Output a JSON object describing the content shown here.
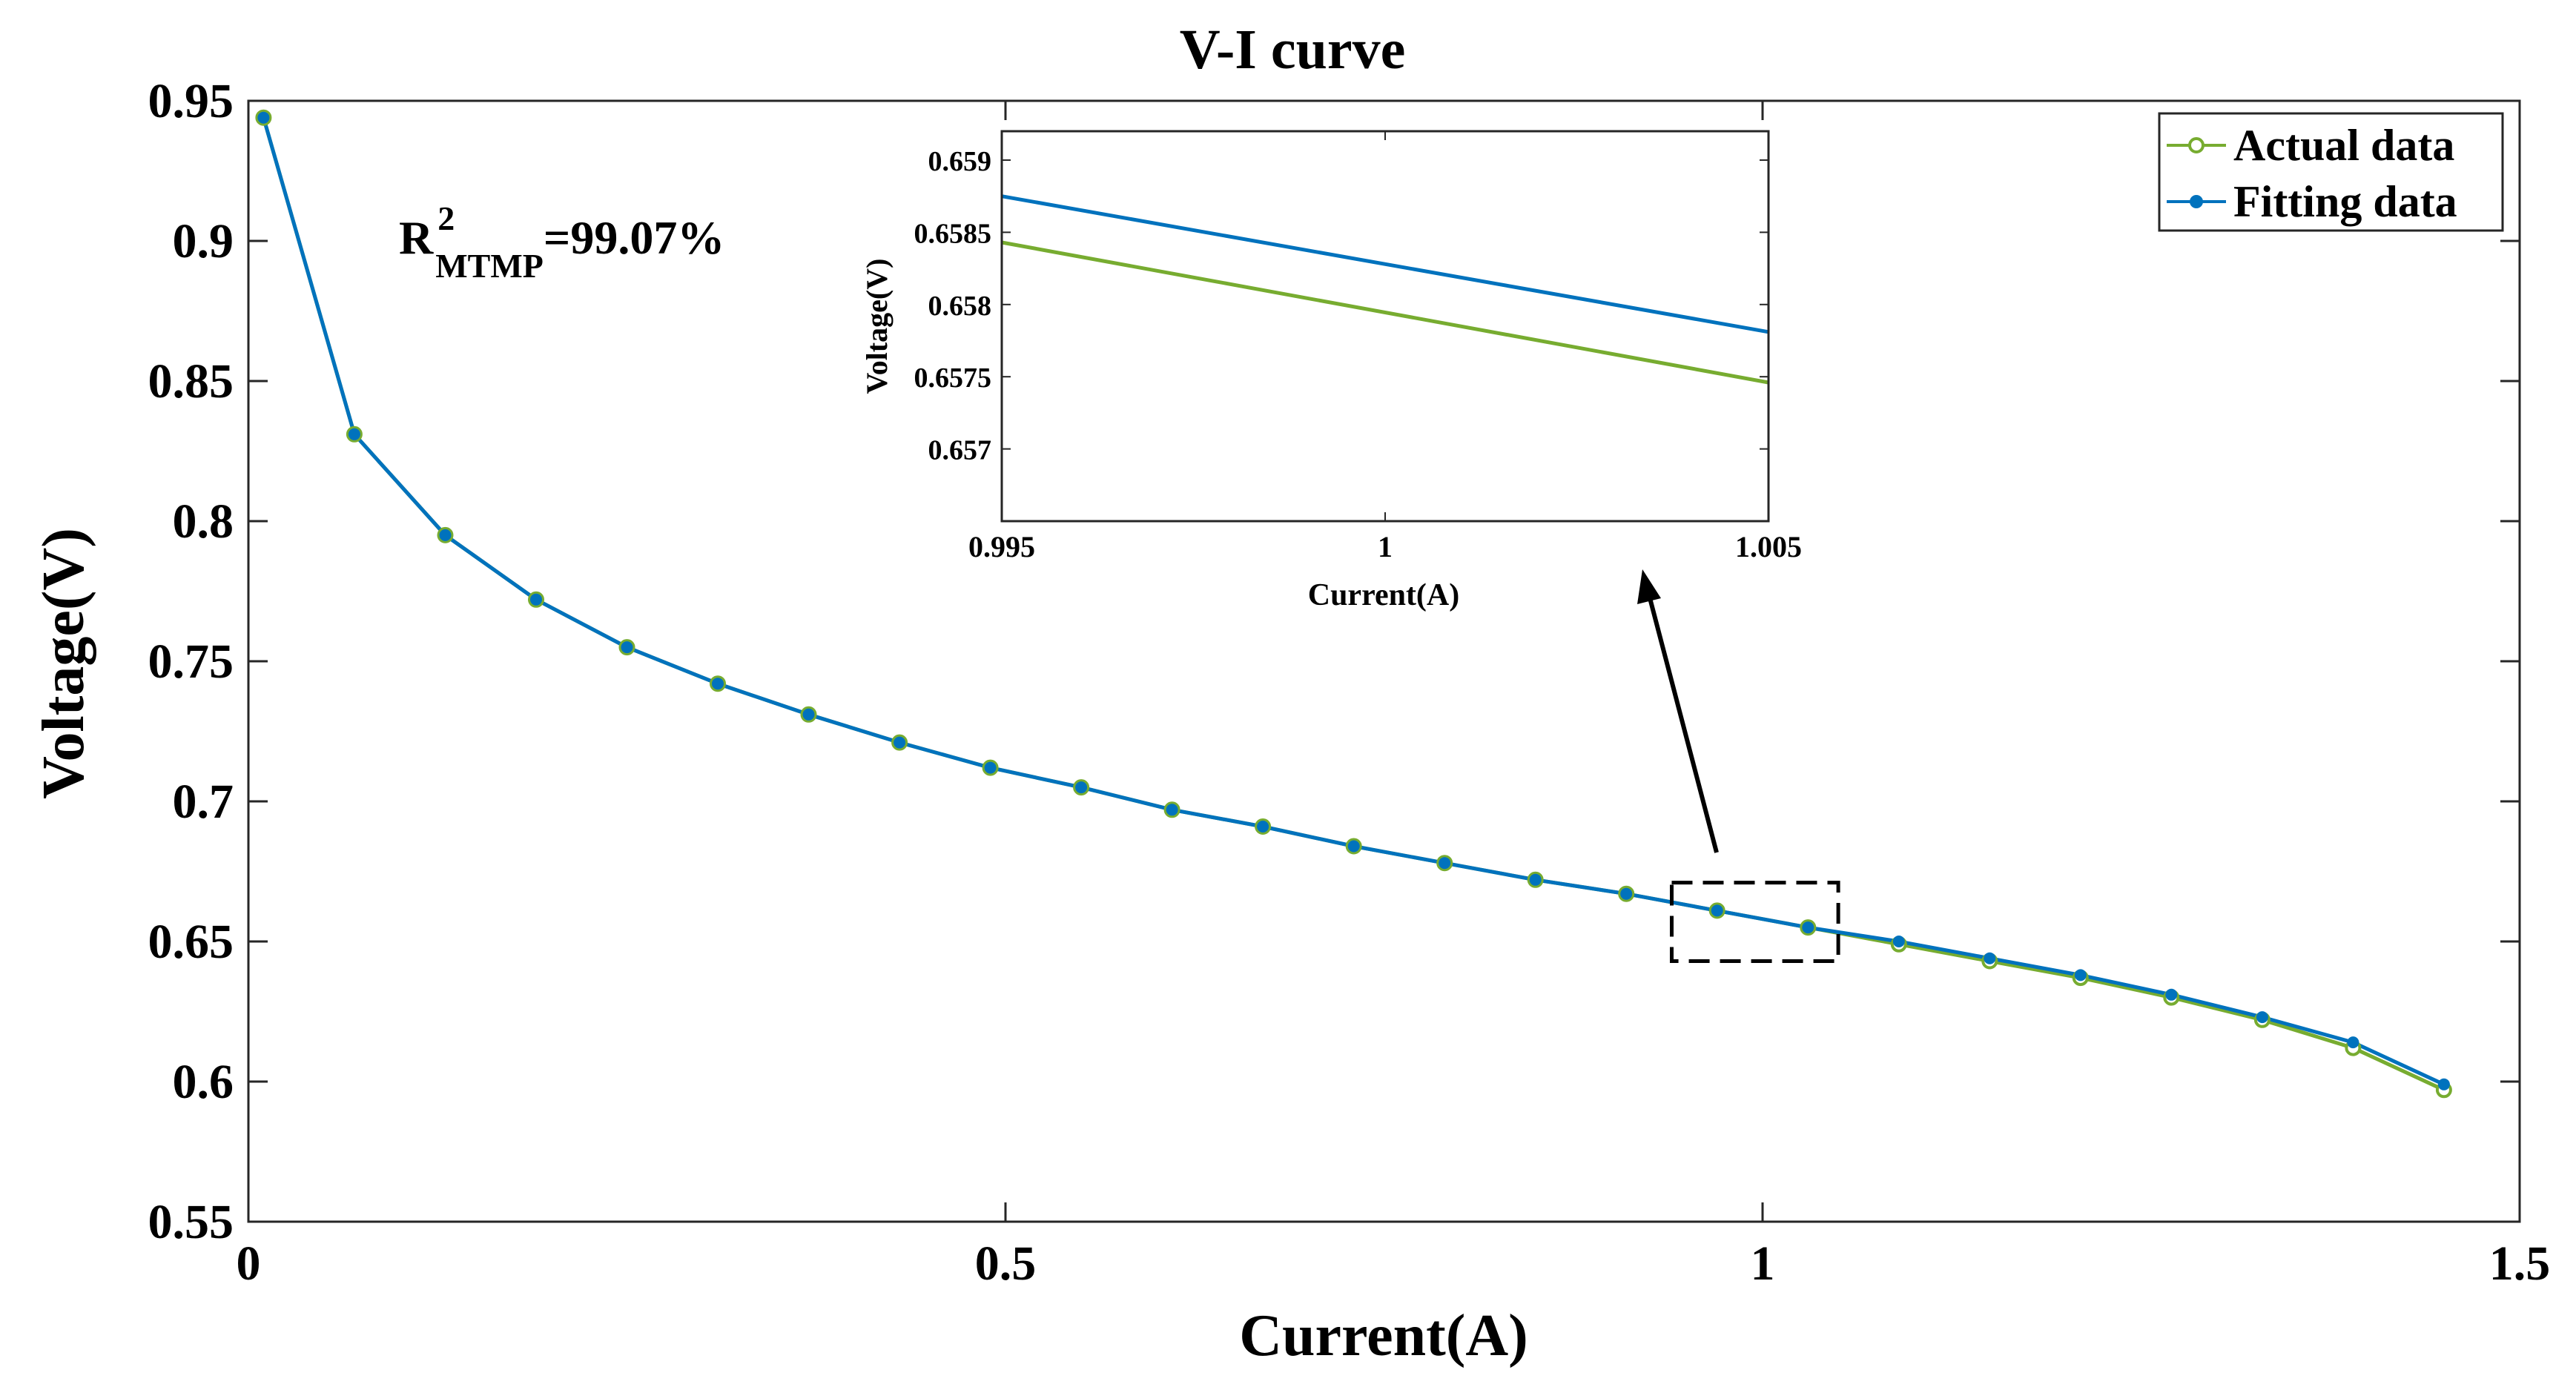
{
  "colors": {
    "actual": "#77AC30",
    "fitting": "#0072BD",
    "axis": "#262626",
    "arrow": "#000000"
  },
  "chart_data": {
    "type": "line",
    "title": "V-I curve",
    "xlabel": "Current(A)",
    "ylabel": "Voltage(V)",
    "xlim": [
      0,
      1.5
    ],
    "ylim": [
      0.55,
      0.95
    ],
    "xticks": [
      0,
      0.5,
      1,
      1.5
    ],
    "xtick_labels": [
      "0",
      "0.5",
      "1",
      "1.5"
    ],
    "yticks": [
      0.55,
      0.6,
      0.65,
      0.7,
      0.75,
      0.8,
      0.85,
      0.9,
      0.95
    ],
    "ytick_labels": [
      "0.55",
      "0.6",
      "0.65",
      "0.7",
      "0.75",
      "0.8",
      "0.85",
      "0.9",
      "0.95"
    ],
    "legend_position": "top-right",
    "annotation": {
      "base": "R",
      "sup": "2",
      "sub": "MTMP",
      "value": "=99.07%"
    },
    "x": [
      0.01,
      0.07,
      0.13,
      0.19,
      0.25,
      0.31,
      0.37,
      0.43,
      0.49,
      0.55,
      0.61,
      0.67,
      0.73,
      0.79,
      0.85,
      0.91,
      0.97,
      1.03,
      1.09,
      1.15,
      1.21,
      1.27,
      1.33,
      1.39,
      1.45
    ],
    "series": [
      {
        "name": "Actual data",
        "marker": "open-circle",
        "values": [
          0.944,
          0.831,
          0.795,
          0.772,
          0.755,
          0.742,
          0.731,
          0.721,
          0.712,
          0.705,
          0.697,
          0.691,
          0.684,
          0.678,
          0.672,
          0.667,
          0.661,
          0.655,
          0.649,
          0.643,
          0.637,
          0.63,
          0.622,
          0.612,
          0.597
        ]
      },
      {
        "name": "Fitting data",
        "marker": "filled-circle",
        "values": [
          0.944,
          0.831,
          0.795,
          0.772,
          0.755,
          0.742,
          0.731,
          0.721,
          0.712,
          0.705,
          0.697,
          0.691,
          0.684,
          0.678,
          0.672,
          0.667,
          0.661,
          0.655,
          0.65,
          0.644,
          0.638,
          0.631,
          0.623,
          0.614,
          0.599
        ]
      }
    ],
    "zoom_region": {
      "xlim": [
        0.94,
        1.05
      ],
      "ylim": [
        0.643,
        0.671
      ]
    },
    "inset": {
      "xlabel": "Current(A)",
      "ylabel": "Voltage(V)",
      "xlim": [
        0.995,
        1.005
      ],
      "ylim": [
        0.6565,
        0.6592
      ],
      "xticks": [
        0.995,
        1,
        1.005
      ],
      "xtick_labels": [
        "0.995",
        "1",
        "1.005"
      ],
      "yticks": [
        0.657,
        0.6575,
        0.658,
        0.6585,
        0.659
      ],
      "ytick_labels": [
        "0.657",
        "0.6575",
        "0.658",
        "0.6585",
        "0.659"
      ],
      "series": [
        {
          "name": "Actual data",
          "x": [
            0.995,
            1.005
          ],
          "values": [
            0.65843,
            0.65746
          ]
        },
        {
          "name": "Fitting data",
          "x": [
            0.995,
            1.005
          ],
          "values": [
            0.65875,
            0.65781
          ]
        }
      ]
    }
  }
}
